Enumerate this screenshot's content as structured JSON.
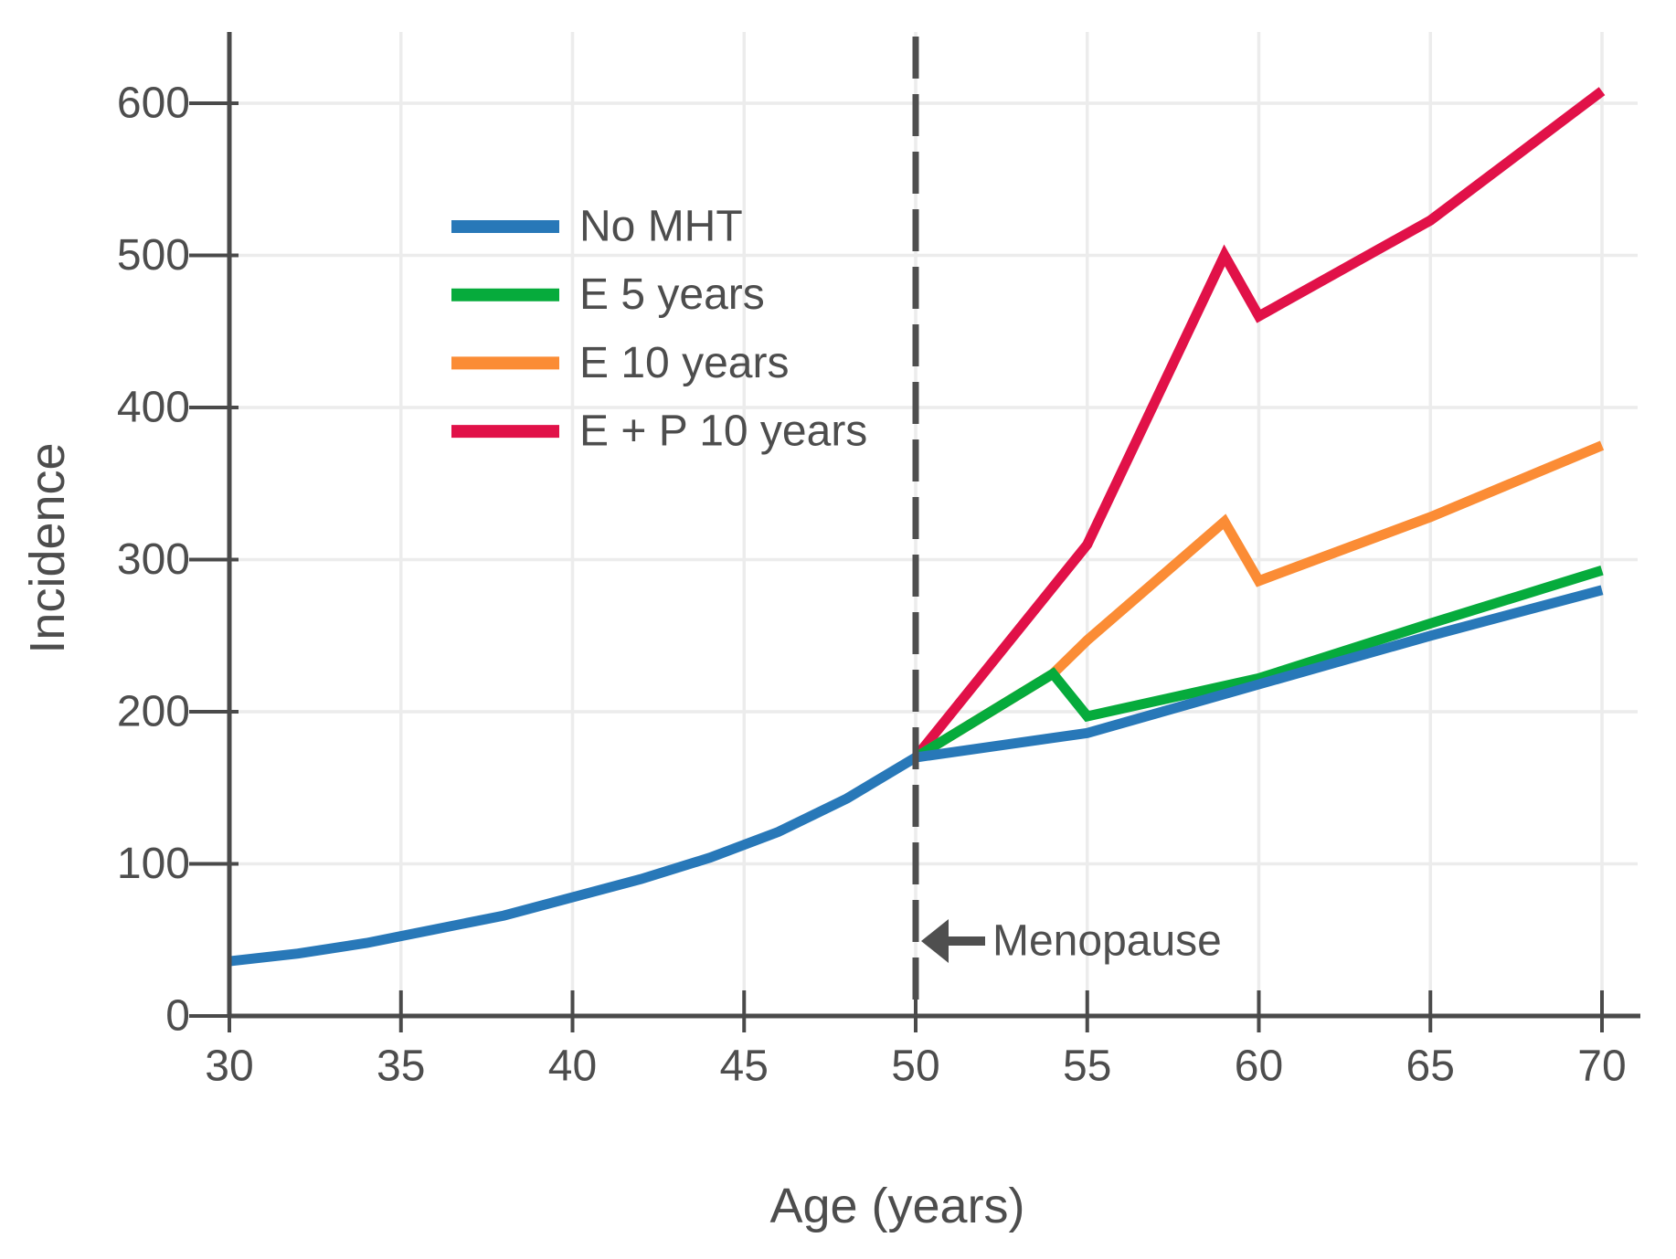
{
  "figure": {
    "background": "#ffffff",
    "text_color": "#4d4d4d",
    "grid_color": "#ececec",
    "axis_color": "#4a4a4a",
    "dashed_line_color": "#4f4f4f"
  },
  "chart_data": {
    "type": "line",
    "title": "",
    "xlabel": "Age (years)",
    "ylabel": "Incidence",
    "xlim": [
      30,
      70
    ],
    "ylim": [
      0,
      650
    ],
    "xticks": [
      30,
      35,
      40,
      45,
      50,
      55,
      60,
      65,
      70
    ],
    "yticks": [
      0,
      100,
      200,
      300,
      400,
      500,
      600
    ],
    "grid": true,
    "legend_position": "upper-left-inside",
    "series": [
      {
        "name": "No MHT",
        "color": "#2878b8",
        "points": [
          [
            30,
            36
          ],
          [
            32,
            41
          ],
          [
            34,
            48
          ],
          [
            36,
            57
          ],
          [
            38,
            66
          ],
          [
            40,
            78
          ],
          [
            42,
            90
          ],
          [
            44,
            104
          ],
          [
            46,
            121
          ],
          [
            48,
            143
          ],
          [
            50,
            170
          ],
          [
            55,
            186
          ],
          [
            60,
            218
          ],
          [
            65,
            250
          ],
          [
            70,
            280
          ]
        ]
      },
      {
        "name": "E 5 years",
        "color": "#06ab3c",
        "points": [
          [
            50,
            170
          ],
          [
            54,
            225
          ],
          [
            55,
            197
          ],
          [
            60,
            222
          ],
          [
            65,
            258
          ],
          [
            70,
            293
          ]
        ]
      },
      {
        "name": "E 10 years",
        "color": "#fb8c35",
        "points": [
          [
            50,
            170
          ],
          [
            54,
            225
          ],
          [
            55,
            247
          ],
          [
            59,
            325
          ],
          [
            60,
            286
          ],
          [
            65,
            328
          ],
          [
            70,
            375
          ]
        ]
      },
      {
        "name": "E + P 10 years",
        "color": "#e11148",
        "points": [
          [
            50,
            170
          ],
          [
            55,
            310
          ],
          [
            59,
            500
          ],
          [
            60,
            460
          ],
          [
            65,
            523
          ],
          [
            70,
            608
          ]
        ]
      }
    ],
    "annotations": {
      "menopause": {
        "x": 50,
        "label": "Menopause",
        "arrow": "left"
      }
    }
  }
}
